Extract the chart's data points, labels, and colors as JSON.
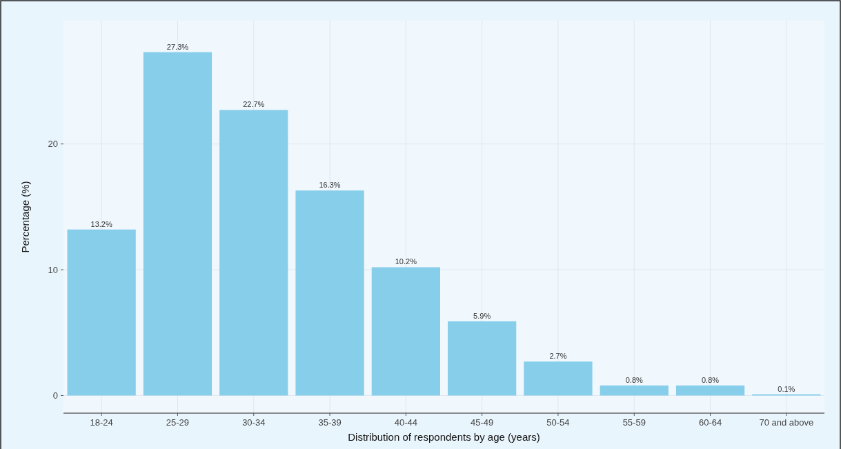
{
  "chart_data": {
    "type": "bar",
    "xlabel": "Distribution of respondents by age (years)",
    "ylabel": "Percentage (%)",
    "categories": [
      "18-24",
      "25-29",
      "30-34",
      "35-39",
      "40-44",
      "45-49",
      "50-54",
      "55-59",
      "60-64",
      "70 and above"
    ],
    "values": [
      13.2,
      27.3,
      22.7,
      16.3,
      10.2,
      5.9,
      2.7,
      0.8,
      0.8,
      0.1
    ],
    "value_labels": [
      "13.2%",
      "27.3%",
      "22.7%",
      "16.3%",
      "10.2%",
      "5.9%",
      "2.7%",
      "0.8%",
      "0.8%",
      "0.1%"
    ],
    "color": "#87ceeb",
    "ylim": [
      -1.4,
      29.8
    ],
    "yticks": [
      0,
      10,
      20
    ],
    "grid": true
  }
}
